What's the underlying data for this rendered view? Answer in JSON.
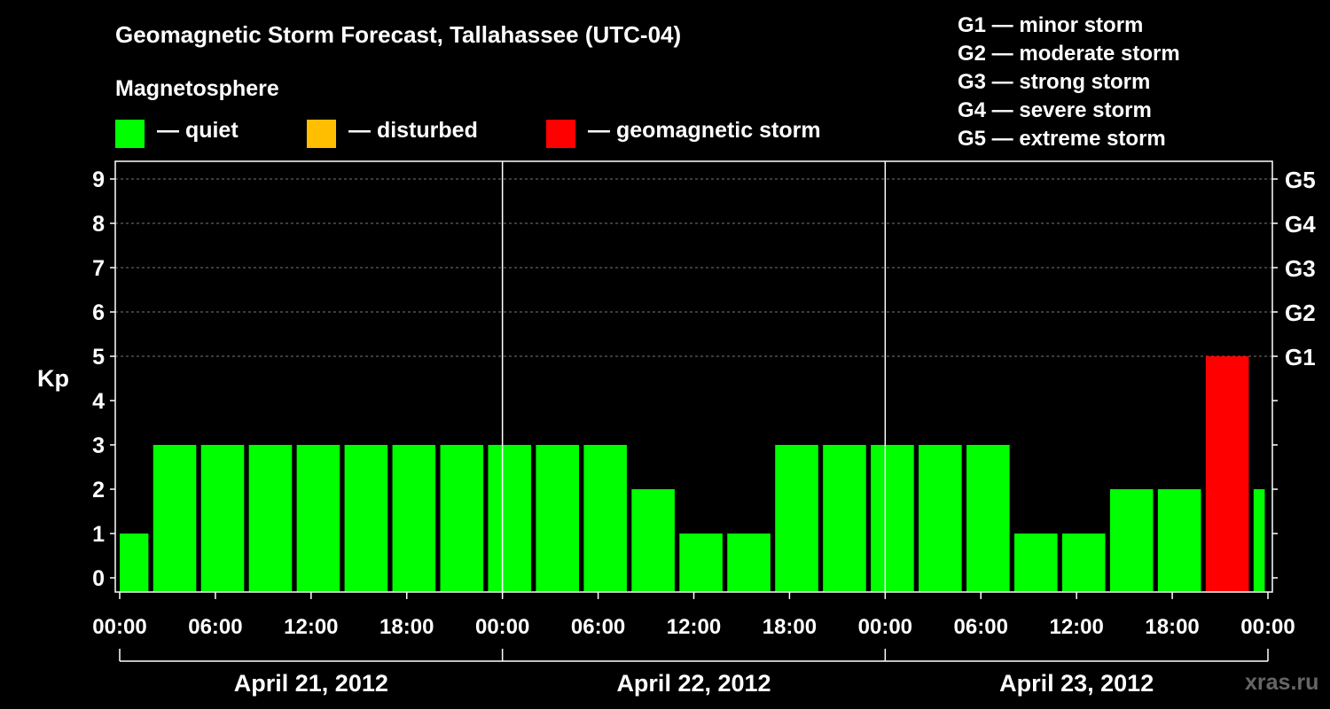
{
  "header": {
    "title": "Geomagnetic Storm Forecast, Tallahassee (UTC-04)",
    "magnetosphere_title": "Magnetosphere"
  },
  "legend": [
    {
      "label": "— quiet",
      "color": "#00ff00"
    },
    {
      "label": "— disturbed",
      "color": "#ffbf00"
    },
    {
      "label": "— geomagnetic storm",
      "color": "#ff0000"
    }
  ],
  "storm_scale": [
    "G1 — minor storm",
    "G2 — moderate storm",
    "G3 — strong storm",
    "G4 — severe storm",
    "G5 — extreme storm"
  ],
  "watermark": "xras.ru",
  "chart_data": {
    "type": "bar",
    "title": "Geomagnetic Storm Forecast, Tallahassee (UTC-04)",
    "ylabel": "Kp",
    "ylim": [
      0,
      9
    ],
    "yticks": [
      "0",
      "1",
      "2",
      "3",
      "4",
      "5",
      "6",
      "7",
      "8",
      "9"
    ],
    "right_axis_labels": [
      {
        "kp": 5,
        "label": "G1"
      },
      {
        "kp": 6,
        "label": "G2"
      },
      {
        "kp": 7,
        "label": "G3"
      },
      {
        "kp": 8,
        "label": "G4"
      },
      {
        "kp": 9,
        "label": "G5"
      }
    ],
    "x_range_hours": [
      0,
      72
    ],
    "x_tick_labels": [
      "00:00",
      "06:00",
      "12:00",
      "18:00",
      "00:00",
      "06:00",
      "12:00",
      "18:00",
      "00:00",
      "06:00",
      "12:00",
      "18:00",
      "00:00"
    ],
    "dates": [
      "April 21, 2012",
      "April 22, 2012",
      "April 23, 2012"
    ],
    "bars": [
      {
        "start_hour": 0,
        "end_hour": 1.8,
        "kp": 1,
        "status": "quiet"
      },
      {
        "start_hour": 2.1,
        "end_hour": 4.8,
        "kp": 3,
        "status": "quiet"
      },
      {
        "start_hour": 5.1,
        "end_hour": 7.8,
        "kp": 3,
        "status": "quiet"
      },
      {
        "start_hour": 8.1,
        "end_hour": 10.8,
        "kp": 3,
        "status": "quiet"
      },
      {
        "start_hour": 11.1,
        "end_hour": 13.8,
        "kp": 3,
        "status": "quiet"
      },
      {
        "start_hour": 14.1,
        "end_hour": 16.8,
        "kp": 3,
        "status": "quiet"
      },
      {
        "start_hour": 17.1,
        "end_hour": 19.8,
        "kp": 3,
        "status": "quiet"
      },
      {
        "start_hour": 20.1,
        "end_hour": 22.8,
        "kp": 3,
        "status": "quiet"
      },
      {
        "start_hour": 23.1,
        "end_hour": 25.8,
        "kp": 3,
        "status": "quiet"
      },
      {
        "start_hour": 26.1,
        "end_hour": 28.8,
        "kp": 3,
        "status": "quiet"
      },
      {
        "start_hour": 29.1,
        "end_hour": 31.8,
        "kp": 3,
        "status": "quiet"
      },
      {
        "start_hour": 32.1,
        "end_hour": 34.8,
        "kp": 2,
        "status": "quiet"
      },
      {
        "start_hour": 35.1,
        "end_hour": 37.8,
        "kp": 1,
        "status": "quiet"
      },
      {
        "start_hour": 38.1,
        "end_hour": 40.8,
        "kp": 1,
        "status": "quiet"
      },
      {
        "start_hour": 41.1,
        "end_hour": 43.8,
        "kp": 3,
        "status": "quiet"
      },
      {
        "start_hour": 44.1,
        "end_hour": 46.8,
        "kp": 3,
        "status": "quiet"
      },
      {
        "start_hour": 47.1,
        "end_hour": 49.8,
        "kp": 3,
        "status": "quiet"
      },
      {
        "start_hour": 50.1,
        "end_hour": 52.8,
        "kp": 3,
        "status": "quiet"
      },
      {
        "start_hour": 53.1,
        "end_hour": 55.8,
        "kp": 3,
        "status": "quiet"
      },
      {
        "start_hour": 56.1,
        "end_hour": 58.8,
        "kp": 1,
        "status": "quiet"
      },
      {
        "start_hour": 59.1,
        "end_hour": 61.8,
        "kp": 1,
        "status": "quiet"
      },
      {
        "start_hour": 62.1,
        "end_hour": 64.8,
        "kp": 2,
        "status": "quiet"
      },
      {
        "start_hour": 65.1,
        "end_hour": 67.8,
        "kp": 2,
        "status": "quiet"
      },
      {
        "start_hour": 68.1,
        "end_hour": 70.8,
        "kp": 5,
        "status": "storm"
      },
      {
        "start_hour": 71.1,
        "end_hour": 71.8,
        "kp": 2,
        "status": "quiet"
      }
    ],
    "colors": {
      "quiet": "#00ff00",
      "disturbed": "#ffbf00",
      "storm": "#ff0000"
    }
  }
}
